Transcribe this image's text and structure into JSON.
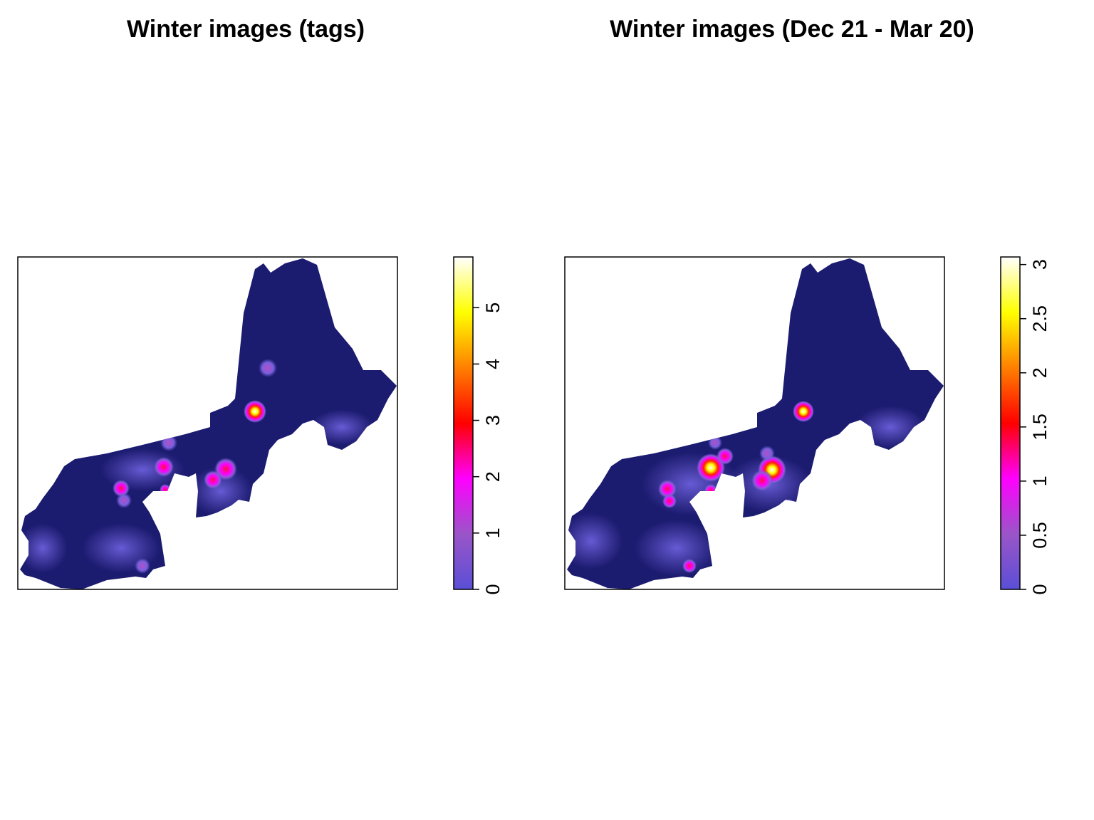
{
  "chart_data": [
    {
      "type": "density-map",
      "title": "Winter images (tags)",
      "ylim": [
        0,
        5.9
      ],
      "yticks": [
        0,
        1,
        2,
        3,
        4,
        5
      ],
      "colors": [
        "#5a4fd6",
        "#9a55c8",
        "#ff00ff",
        "#ff0000",
        "#ff8000",
        "#ffff00",
        "#ffffff"
      ]
    },
    {
      "type": "density-map",
      "title": "Winter images (Dec 21 - Mar 20)",
      "ylim": [
        0,
        3.07
      ],
      "yticks": [
        0,
        0.5,
        1,
        1.5,
        2,
        2.5,
        3
      ],
      "colors": [
        "#5a4fd6",
        "#9a55c8",
        "#ff00ff",
        "#ff0000",
        "#ff8000",
        "#ffff00",
        "#ffffff"
      ]
    }
  ]
}
